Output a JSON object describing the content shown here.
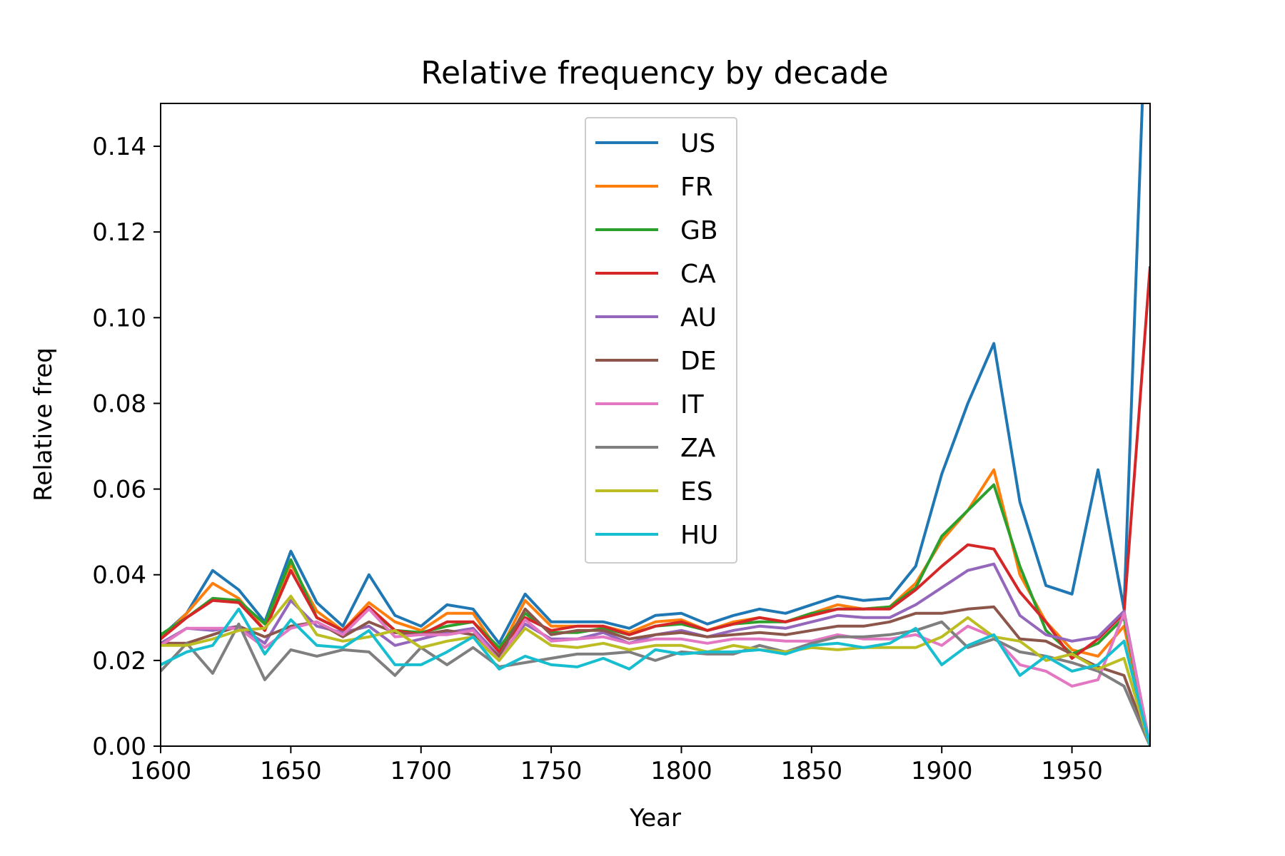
{
  "chart_data": {
    "type": "line",
    "title": "Relative frequency by decade",
    "xlabel": "Year",
    "ylabel": "Relative freq",
    "xlim": [
      1600,
      1980
    ],
    "ylim": [
      0,
      0.15
    ],
    "xticks": [
      {
        "value": 1600,
        "label": "1600"
      },
      {
        "value": 1650,
        "label": "1650"
      },
      {
        "value": 1700,
        "label": "1700"
      },
      {
        "value": 1750,
        "label": "1750"
      },
      {
        "value": 1800,
        "label": "1800"
      },
      {
        "value": 1850,
        "label": "1850"
      },
      {
        "value": 1900,
        "label": "1900"
      },
      {
        "value": 1950,
        "label": "1950"
      }
    ],
    "yticks": [
      {
        "value": 0.0,
        "label": "0.00"
      },
      {
        "value": 0.02,
        "label": "0.02"
      },
      {
        "value": 0.04,
        "label": "0.04"
      },
      {
        "value": 0.06,
        "label": "0.06"
      },
      {
        "value": 0.08,
        "label": "0.08"
      },
      {
        "value": 0.1,
        "label": "0.10"
      },
      {
        "value": 0.12,
        "label": "0.12"
      },
      {
        "value": 0.14,
        "label": "0.14"
      }
    ],
    "grid": false,
    "legend_position": "upper-center",
    "x": [
      1600,
      1610,
      1620,
      1630,
      1640,
      1650,
      1660,
      1670,
      1680,
      1690,
      1700,
      1710,
      1720,
      1730,
      1740,
      1750,
      1760,
      1770,
      1780,
      1790,
      1800,
      1810,
      1820,
      1830,
      1840,
      1850,
      1860,
      1870,
      1880,
      1890,
      1900,
      1910,
      1920,
      1930,
      1940,
      1950,
      1960,
      1970,
      1980
    ],
    "series": [
      {
        "name": "US",
        "color": "#1f77b4",
        "values": [
          0.0255,
          0.031,
          0.041,
          0.0365,
          0.029,
          0.0455,
          0.0335,
          0.028,
          0.04,
          0.0305,
          0.028,
          0.033,
          0.032,
          0.024,
          0.0355,
          0.029,
          0.029,
          0.029,
          0.0275,
          0.0305,
          0.031,
          0.0285,
          0.0305,
          0.032,
          0.031,
          0.033,
          0.035,
          0.034,
          0.0345,
          0.042,
          0.0635,
          0.08,
          0.094,
          0.057,
          0.0375,
          0.0355,
          0.0645,
          0.032,
          0.2
        ]
      },
      {
        "name": "FR",
        "color": "#ff7f0e",
        "values": [
          0.025,
          0.031,
          0.038,
          0.0345,
          0.027,
          0.0425,
          0.0315,
          0.027,
          0.0335,
          0.029,
          0.027,
          0.031,
          0.031,
          0.022,
          0.034,
          0.028,
          0.028,
          0.028,
          0.0265,
          0.029,
          0.0295,
          0.027,
          0.029,
          0.03,
          0.029,
          0.031,
          0.033,
          0.032,
          0.0325,
          0.038,
          0.048,
          0.055,
          0.0645,
          0.04,
          0.029,
          0.0225,
          0.021,
          0.028,
          0.0
        ]
      },
      {
        "name": "GB",
        "color": "#2ca02c",
        "values": [
          0.026,
          0.03,
          0.0345,
          0.034,
          0.0285,
          0.0435,
          0.03,
          0.027,
          0.032,
          0.027,
          0.0265,
          0.028,
          0.029,
          0.023,
          0.031,
          0.0265,
          0.0265,
          0.0275,
          0.026,
          0.028,
          0.0285,
          0.027,
          0.0285,
          0.029,
          0.029,
          0.031,
          0.032,
          0.032,
          0.0325,
          0.037,
          0.049,
          0.055,
          0.061,
          0.042,
          0.027,
          0.0215,
          0.024,
          0.03,
          0.0
        ]
      },
      {
        "name": "CA",
        "color": "#d62728",
        "values": [
          0.025,
          0.03,
          0.034,
          0.0335,
          0.027,
          0.041,
          0.03,
          0.027,
          0.0325,
          0.027,
          0.026,
          0.029,
          0.029,
          0.022,
          0.03,
          0.027,
          0.028,
          0.028,
          0.026,
          0.028,
          0.029,
          0.027,
          0.0285,
          0.03,
          0.029,
          0.0305,
          0.032,
          0.032,
          0.032,
          0.0365,
          0.042,
          0.047,
          0.046,
          0.036,
          0.029,
          0.0205,
          0.025,
          0.031,
          0.112
        ]
      },
      {
        "name": "AU",
        "color": "#9467bd",
        "values": [
          0.024,
          0.0275,
          0.027,
          0.028,
          0.024,
          0.034,
          0.028,
          0.0265,
          0.028,
          0.0235,
          0.025,
          0.0265,
          0.0275,
          0.021,
          0.0285,
          0.025,
          0.025,
          0.0265,
          0.024,
          0.026,
          0.027,
          0.0255,
          0.027,
          0.028,
          0.0275,
          0.029,
          0.0305,
          0.03,
          0.03,
          0.033,
          0.037,
          0.041,
          0.0425,
          0.0305,
          0.026,
          0.0245,
          0.0255,
          0.0315,
          0.0
        ]
      },
      {
        "name": "DE",
        "color": "#8c564b",
        "values": [
          0.024,
          0.024,
          0.026,
          0.028,
          0.0255,
          0.028,
          0.029,
          0.0255,
          0.029,
          0.0265,
          0.026,
          0.027,
          0.026,
          0.021,
          0.032,
          0.026,
          0.027,
          0.027,
          0.025,
          0.026,
          0.0265,
          0.0255,
          0.026,
          0.0265,
          0.026,
          0.027,
          0.028,
          0.028,
          0.029,
          0.031,
          0.031,
          0.032,
          0.0325,
          0.025,
          0.0245,
          0.0215,
          0.0185,
          0.0165,
          0.0
        ]
      },
      {
        "name": "IT",
        "color": "#e377c2",
        "values": [
          0.0235,
          0.0275,
          0.0275,
          0.0275,
          0.023,
          0.0275,
          0.029,
          0.026,
          0.032,
          0.0255,
          0.026,
          0.026,
          0.027,
          0.02,
          0.0295,
          0.0245,
          0.025,
          0.0255,
          0.024,
          0.025,
          0.025,
          0.024,
          0.025,
          0.025,
          0.0245,
          0.0245,
          0.026,
          0.025,
          0.025,
          0.026,
          0.0235,
          0.028,
          0.0255,
          0.019,
          0.0175,
          0.014,
          0.0155,
          0.031,
          0.0
        ]
      },
      {
        "name": "ZA",
        "color": "#7f7f7f",
        "values": [
          0.0175,
          0.024,
          0.017,
          0.0285,
          0.0155,
          0.0225,
          0.021,
          0.0225,
          0.022,
          0.0165,
          0.023,
          0.019,
          0.023,
          0.0185,
          0.0195,
          0.0205,
          0.0215,
          0.0215,
          0.022,
          0.02,
          0.022,
          0.0215,
          0.0215,
          0.0235,
          0.022,
          0.024,
          0.0255,
          0.0255,
          0.026,
          0.027,
          0.029,
          0.023,
          0.025,
          0.022,
          0.021,
          0.0195,
          0.0175,
          0.014,
          0.0
        ]
      },
      {
        "name": "ES",
        "color": "#bcbd22",
        "values": [
          0.0235,
          0.0235,
          0.025,
          0.027,
          0.0275,
          0.035,
          0.026,
          0.0245,
          0.0255,
          0.027,
          0.023,
          0.0245,
          0.0255,
          0.02,
          0.0275,
          0.0235,
          0.023,
          0.024,
          0.0225,
          0.0235,
          0.0235,
          0.022,
          0.0235,
          0.0225,
          0.022,
          0.023,
          0.0225,
          0.023,
          0.023,
          0.023,
          0.0255,
          0.03,
          0.0255,
          0.0245,
          0.02,
          0.0215,
          0.018,
          0.0205,
          0.0
        ]
      },
      {
        "name": "HU",
        "color": "#17becf",
        "values": [
          0.019,
          0.022,
          0.0235,
          0.032,
          0.0215,
          0.0295,
          0.0235,
          0.023,
          0.027,
          0.019,
          0.019,
          0.022,
          0.0255,
          0.018,
          0.021,
          0.019,
          0.0185,
          0.0205,
          0.018,
          0.0225,
          0.0215,
          0.022,
          0.022,
          0.0225,
          0.0215,
          0.0235,
          0.024,
          0.023,
          0.024,
          0.0275,
          0.019,
          0.0235,
          0.026,
          0.0165,
          0.021,
          0.0175,
          0.019,
          0.0245,
          0.0
        ]
      }
    ]
  }
}
